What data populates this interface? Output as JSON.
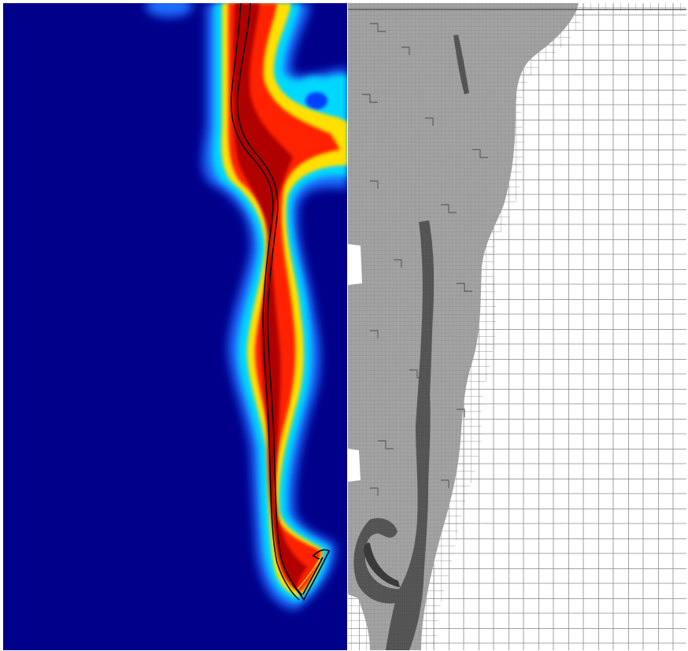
{
  "figure": {
    "panels": [
      {
        "id": "left",
        "kind": "colormap-field",
        "colormap": "jet",
        "colors": {
          "low": "#00008b",
          "mid": "#00c8ff",
          "high": "#a40000",
          "warm": "#ff2000",
          "yellow": "#ffe000"
        }
      },
      {
        "id": "right",
        "kind": "adaptive-mesh",
        "colors": {
          "background": "#ffffff",
          "coarse_line": "#6a6a6a",
          "fine_fill": "#9e9e9e",
          "finest_fill": "#555555"
        }
      }
    ]
  }
}
